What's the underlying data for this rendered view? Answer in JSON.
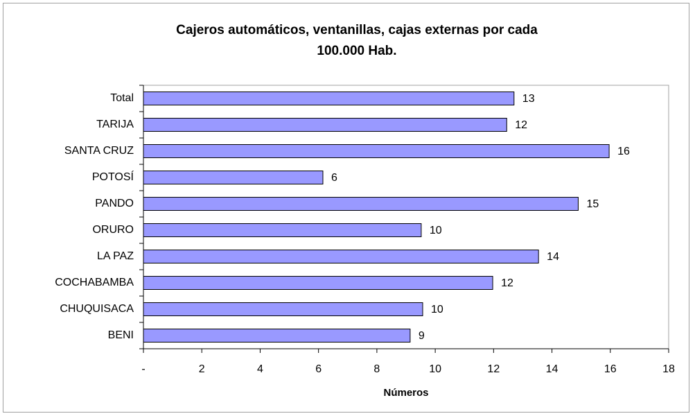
{
  "chart_data": {
    "type": "barh",
    "title": [
      "Cajeros automáticos, ventanillas, cajas externas por cada",
      "100.000 Hab."
    ],
    "x_label": "Números",
    "categories": [
      "Total",
      "TARIJA",
      "SANTA CRUZ",
      "POTOSÍ",
      "PANDO",
      "ORURO",
      "LA PAZ",
      "COCHABAMBA",
      "CHUQUISACA",
      "BENI"
    ],
    "values": [
      12.7,
      12.45,
      15.96,
      6.15,
      14.9,
      9.52,
      13.54,
      11.97,
      9.57,
      9.14
    ],
    "value_labels": [
      "13",
      "12",
      "16",
      "6",
      "15",
      "10",
      "14",
      "12",
      "10",
      "9"
    ],
    "color": "#9999ff",
    "xlim": [
      0,
      18
    ],
    "xticks": [
      {
        "value": 0,
        "label": "-"
      },
      2,
      4,
      6,
      8,
      10,
      12,
      14,
      16,
      18
    ],
    "grid": false
  }
}
